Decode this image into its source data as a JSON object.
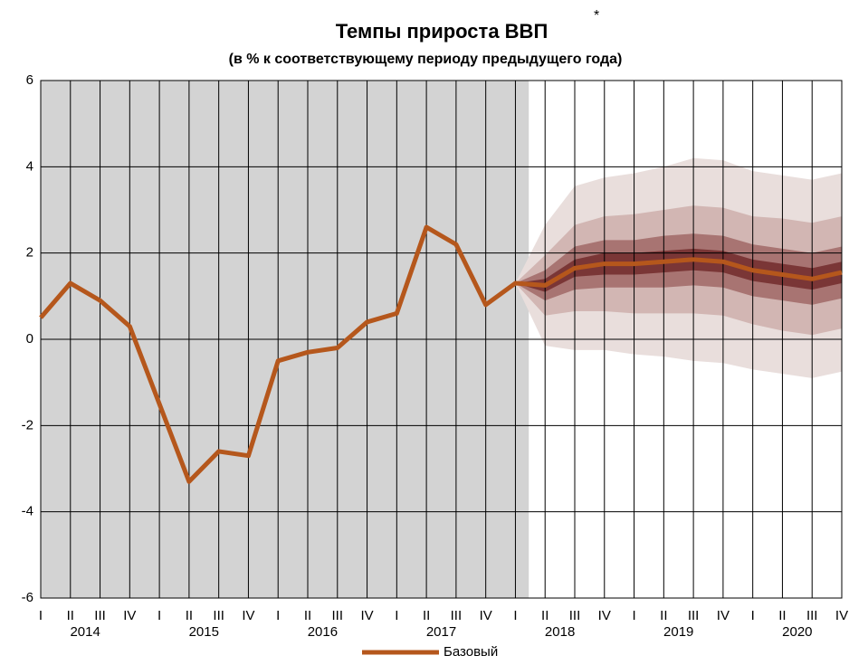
{
  "chart_data": {
    "type": "line",
    "title": "Темпы прироста ВВП",
    "title_note": "*",
    "subtitle": "(в % к соответствующему периоду предыдущего года)",
    "categories": [
      "I",
      "II",
      "III",
      "IV",
      "I",
      "II",
      "III",
      "IV",
      "I",
      "II",
      "III",
      "IV",
      "I",
      "II",
      "III",
      "IV",
      "I",
      "II",
      "III",
      "IV",
      "I",
      "II",
      "III",
      "IV",
      "I",
      "II",
      "III",
      "IV"
    ],
    "years": [
      "2014",
      "2015",
      "2016",
      "2017",
      "2018",
      "2019",
      "2020"
    ],
    "series": [
      {
        "name": "Базовый",
        "color": "#b5571c",
        "values": [
          0.5,
          1.3,
          0.9,
          0.3,
          -1.5,
          -3.3,
          -2.6,
          -2.7,
          -0.5,
          -0.3,
          -0.2,
          0.4,
          0.6,
          2.6,
          2.2,
          0.8,
          1.3,
          1.25,
          1.65,
          1.75,
          1.75,
          1.8,
          1.85,
          1.8,
          1.6,
          1.5,
          1.4,
          1.55
        ]
      }
    ],
    "bands": [
      {
        "color": "#e9dedc",
        "upper": [
          null,
          null,
          null,
          null,
          null,
          null,
          null,
          null,
          null,
          null,
          null,
          null,
          null,
          null,
          null,
          null,
          1.3,
          2.65,
          3.55,
          3.75,
          3.85,
          4.0,
          4.2,
          4.15,
          3.9,
          3.8,
          3.7,
          3.85
        ],
        "lower": [
          null,
          null,
          null,
          null,
          null,
          null,
          null,
          null,
          null,
          null,
          null,
          null,
          null,
          null,
          null,
          null,
          1.3,
          -0.15,
          -0.25,
          -0.25,
          -0.35,
          -0.4,
          -0.5,
          -0.55,
          -0.7,
          -0.8,
          -0.9,
          -0.75
        ]
      },
      {
        "color": "#d2b6b3",
        "upper": [
          null,
          null,
          null,
          null,
          null,
          null,
          null,
          null,
          null,
          null,
          null,
          null,
          null,
          null,
          null,
          null,
          1.3,
          1.95,
          2.65,
          2.85,
          2.9,
          3.0,
          3.1,
          3.05,
          2.85,
          2.8,
          2.7,
          2.85
        ],
        "lower": [
          null,
          null,
          null,
          null,
          null,
          null,
          null,
          null,
          null,
          null,
          null,
          null,
          null,
          null,
          null,
          null,
          1.3,
          0.55,
          0.65,
          0.65,
          0.6,
          0.6,
          0.6,
          0.55,
          0.35,
          0.2,
          0.1,
          0.25
        ]
      },
      {
        "color": "#a87472",
        "upper": [
          null,
          null,
          null,
          null,
          null,
          null,
          null,
          null,
          null,
          null,
          null,
          null,
          null,
          null,
          null,
          null,
          1.3,
          1.6,
          2.15,
          2.3,
          2.3,
          2.4,
          2.45,
          2.4,
          2.2,
          2.1,
          2.0,
          2.15
        ],
        "lower": [
          null,
          null,
          null,
          null,
          null,
          null,
          null,
          null,
          null,
          null,
          null,
          null,
          null,
          null,
          null,
          null,
          1.3,
          0.9,
          1.15,
          1.2,
          1.2,
          1.2,
          1.25,
          1.2,
          1.0,
          0.9,
          0.8,
          0.95
        ]
      },
      {
        "color": "#7a3636",
        "upper": [
          null,
          null,
          null,
          null,
          null,
          null,
          null,
          null,
          null,
          null,
          null,
          null,
          null,
          null,
          null,
          null,
          1.3,
          1.4,
          1.85,
          2.0,
          2.0,
          2.05,
          2.1,
          2.05,
          1.85,
          1.75,
          1.65,
          1.8
        ],
        "lower": [
          null,
          null,
          null,
          null,
          null,
          null,
          null,
          null,
          null,
          null,
          null,
          null,
          null,
          null,
          null,
          null,
          1.3,
          1.1,
          1.45,
          1.5,
          1.5,
          1.55,
          1.6,
          1.55,
          1.35,
          1.25,
          1.15,
          1.3
        ]
      }
    ],
    "ylim": [
      -6,
      6
    ],
    "yticks": [
      -6,
      -4,
      -2,
      0,
      2,
      4,
      6
    ],
    "grid": true
  }
}
